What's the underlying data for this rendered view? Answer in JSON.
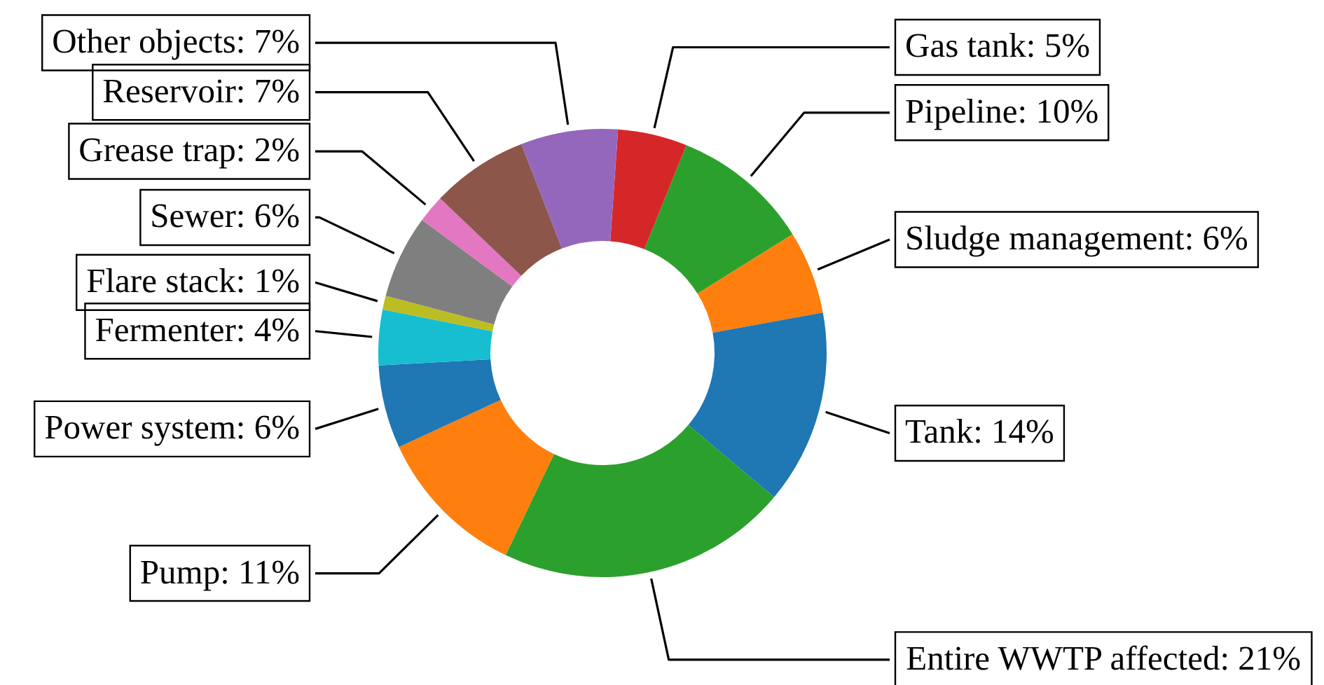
{
  "chart_data": {
    "type": "donut",
    "categories": [
      "Gas tank",
      "Pipeline",
      "Sludge management",
      "Tank",
      "Entire WWTP affected",
      "Pump",
      "Power system",
      "Fermenter",
      "Flare stack",
      "Sewer",
      "Grease trap",
      "Reservoir",
      "Other objects"
    ],
    "values": [
      5,
      10,
      6,
      14,
      21,
      11,
      6,
      4,
      1,
      6,
      2,
      7,
      7
    ],
    "colors": [
      "#d62728",
      "#2ca02c",
      "#ff7f0e",
      "#1f77b4",
      "#2ca02c",
      "#ff7f0e",
      "#1f77b4",
      "#17becf",
      "#bcbd22",
      "#7f7f7f",
      "#e377c2",
      "#8c564b",
      "#9467bd"
    ],
    "value_labels": [
      "5%",
      "10%",
      "6%",
      "14%",
      "21%",
      "11%",
      "6%",
      "4%",
      "1%",
      "6%",
      "2%",
      "7%",
      "7%"
    ]
  }
}
